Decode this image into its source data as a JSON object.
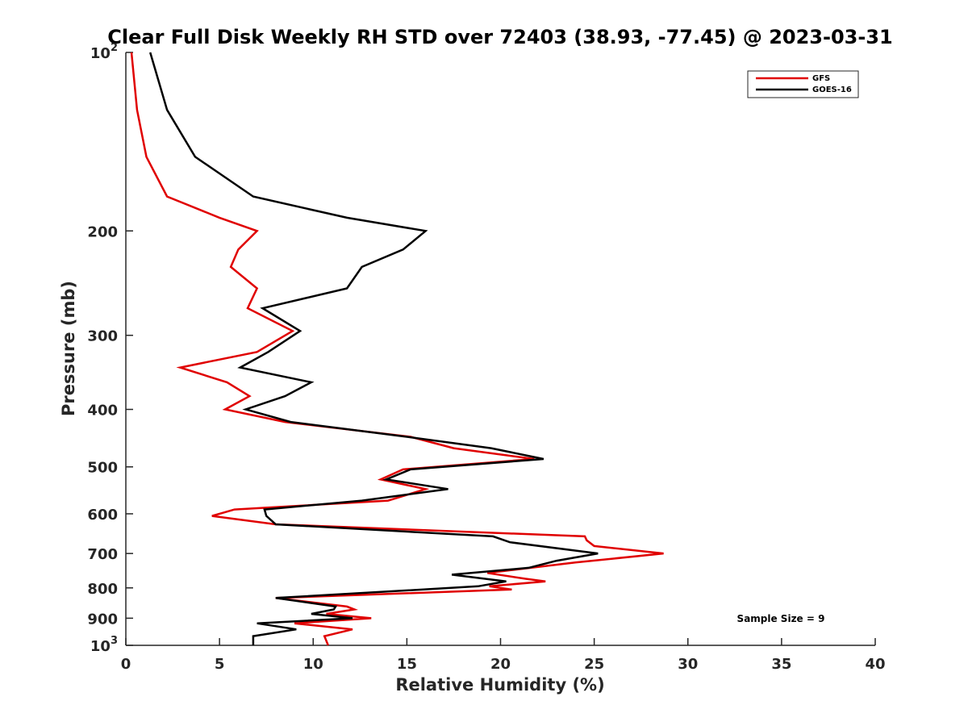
{
  "chart_data": {
    "type": "line",
    "title": "Clear Full Disk Weekly RH STD over 72403 (38.93, -77.45) @ 2023-03-31",
    "xlabel": "Relative Humidity (%)",
    "ylabel": "Pressure (mb)",
    "xlim": [
      0,
      40
    ],
    "ylim": [
      100,
      1000
    ],
    "yscale": "log",
    "y_reversed": true,
    "grid": false,
    "legend_position": "top-right",
    "x_ticks": [
      0,
      5,
      10,
      15,
      20,
      25,
      30,
      35,
      40
    ],
    "y_ticks": [
      {
        "value": 100,
        "label": "10",
        "sup": "2"
      },
      {
        "value": 200,
        "label": "200",
        "sup": ""
      },
      {
        "value": 300,
        "label": "300",
        "sup": ""
      },
      {
        "value": 400,
        "label": "400",
        "sup": ""
      },
      {
        "value": 500,
        "label": "500",
        "sup": ""
      },
      {
        "value": 600,
        "label": "600",
        "sup": ""
      },
      {
        "value": 700,
        "label": "700",
        "sup": ""
      },
      {
        "value": 800,
        "label": "800",
        "sup": ""
      },
      {
        "value": 900,
        "label": "900",
        "sup": ""
      },
      {
        "value": 1000,
        "label": "10",
        "sup": "3"
      }
    ],
    "series": [
      {
        "name": "GFS",
        "color": "#e00000",
        "points": [
          [
            0.3,
            100
          ],
          [
            0.6,
            125
          ],
          [
            1.1,
            150
          ],
          [
            2.2,
            175
          ],
          [
            5,
            190
          ],
          [
            7,
            200
          ],
          [
            6,
            215
          ],
          [
            5.6,
            230
          ],
          [
            7,
            250
          ],
          [
            6.5,
            270
          ],
          [
            8.9,
            295
          ],
          [
            7,
            320
          ],
          [
            2.9,
            340
          ],
          [
            5.4,
            360
          ],
          [
            6.6,
            380
          ],
          [
            5.3,
            400
          ],
          [
            8.5,
            420
          ],
          [
            15.2,
            445
          ],
          [
            17.5,
            465
          ],
          [
            21.8,
            485
          ],
          [
            14.8,
            505
          ],
          [
            13.6,
            525
          ],
          [
            16,
            545
          ],
          [
            14,
            570
          ],
          [
            5.8,
            590
          ],
          [
            4.6,
            605
          ],
          [
            8,
            625
          ],
          [
            24.5,
            655
          ],
          [
            24.6,
            665
          ],
          [
            25,
            680
          ],
          [
            28.7,
            700
          ],
          [
            24,
            725
          ],
          [
            19.3,
            755
          ],
          [
            21.3,
            772
          ],
          [
            22.4,
            780
          ],
          [
            19.4,
            795
          ],
          [
            20.6,
            805
          ],
          [
            8,
            832
          ],
          [
            11.8,
            860
          ],
          [
            12.2,
            870
          ],
          [
            10.7,
            885
          ],
          [
            13.1,
            900
          ],
          [
            9,
            918
          ],
          [
            12.1,
            940
          ],
          [
            10.6,
            965
          ],
          [
            10.8,
            1000
          ]
        ]
      },
      {
        "name": "GOES-16",
        "color": "#000000",
        "points": [
          [
            1.3,
            100
          ],
          [
            2.2,
            125
          ],
          [
            3.7,
            150
          ],
          [
            6.8,
            175
          ],
          [
            11.8,
            190
          ],
          [
            16,
            200
          ],
          [
            14.8,
            215
          ],
          [
            12.6,
            230
          ],
          [
            11.8,
            250
          ],
          [
            7.3,
            270
          ],
          [
            9.3,
            295
          ],
          [
            7.6,
            320
          ],
          [
            6.1,
            340
          ],
          [
            9.9,
            360
          ],
          [
            8.5,
            380
          ],
          [
            6.4,
            400
          ],
          [
            8.8,
            420
          ],
          [
            15,
            445
          ],
          [
            19.5,
            465
          ],
          [
            22.3,
            485
          ],
          [
            15.2,
            505
          ],
          [
            13.9,
            525
          ],
          [
            17.2,
            545
          ],
          [
            12.6,
            570
          ],
          [
            7.4,
            590
          ],
          [
            7.5,
            605
          ],
          [
            8,
            625
          ],
          [
            19.6,
            655
          ],
          [
            20.5,
            670
          ],
          [
            25.2,
            700
          ],
          [
            23,
            720
          ],
          [
            21.5,
            740
          ],
          [
            17.4,
            760
          ],
          [
            20.3,
            780
          ],
          [
            18.8,
            795
          ],
          [
            8,
            832
          ],
          [
            11.2,
            860
          ],
          [
            11.1,
            870
          ],
          [
            9.9,
            885
          ],
          [
            12.1,
            900
          ],
          [
            7,
            918
          ],
          [
            9.1,
            940
          ],
          [
            6.8,
            965
          ],
          [
            6.8,
            1000
          ]
        ]
      }
    ],
    "annotation": "Sample Size = 9"
  }
}
